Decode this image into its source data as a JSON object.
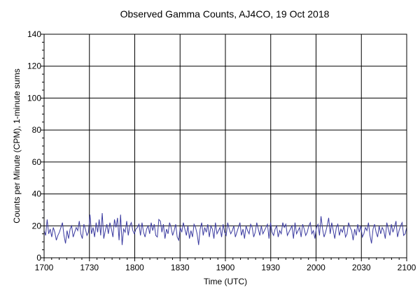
{
  "chart_data": {
    "type": "line",
    "title": "Observed Gamma Counts, AJ4CO, 19 Oct 2018",
    "xlabel": "Time (UTC)",
    "ylabel": "Counts per Minute (CPM), 1-minute sums",
    "x_tick_labels": [
      "1700",
      "1730",
      "1800",
      "1830",
      "1900",
      "1930",
      "2000",
      "2030",
      "2100"
    ],
    "y_tick_labels": [
      "0",
      "20",
      "40",
      "60",
      "80",
      "100",
      "120",
      "140"
    ],
    "xlim_minutes": [
      0,
      240
    ],
    "ylim": [
      0,
      140
    ],
    "grid": true,
    "line_color": "#3b3ba0",
    "series": [
      {
        "values": [
          17,
          14,
          24,
          15,
          18,
          13,
          19,
          16,
          11,
          14,
          16,
          19,
          22,
          14,
          9,
          17,
          12,
          18,
          20,
          13,
          16,
          19,
          17,
          23,
          15,
          12,
          21,
          18,
          14,
          16,
          27,
          15,
          19,
          13,
          22,
          16,
          24,
          14,
          28,
          12,
          17,
          21,
          15,
          22,
          18,
          13,
          24,
          19,
          25,
          11,
          27,
          8,
          18,
          16,
          23,
          14,
          20,
          22,
          17,
          15,
          18,
          19,
          21,
          14,
          22,
          16,
          13,
          18,
          20,
          15,
          22,
          17,
          21,
          14,
          13,
          24,
          23,
          16,
          21,
          12,
          18,
          15,
          22,
          19,
          14,
          17,
          21,
          13,
          11,
          19,
          16,
          22,
          18,
          14,
          20,
          12,
          17,
          13,
          21,
          19,
          15,
          8,
          18,
          22,
          14,
          19,
          16,
          21,
          13,
          20,
          18,
          12,
          22,
          15,
          17,
          19,
          13,
          21,
          16,
          14,
          22,
          18,
          15,
          17,
          20,
          13,
          16,
          19,
          22,
          14,
          18,
          12,
          20,
          17,
          15,
          21,
          19,
          13,
          16,
          22,
          18,
          14,
          20,
          15,
          17,
          19,
          21,
          12,
          22,
          16,
          14,
          18,
          20,
          13,
          17,
          15,
          22,
          19,
          21,
          14,
          16,
          18,
          20,
          12,
          22,
          15,
          17,
          19,
          13,
          21,
          18,
          14,
          16,
          20,
          22,
          15,
          17,
          12,
          19,
          21,
          14,
          26,
          18,
          13,
          16,
          20,
          25,
          15,
          22,
          17,
          12,
          19,
          21,
          14,
          18,
          16,
          20,
          13,
          15,
          22,
          19,
          17,
          11,
          18,
          14,
          21,
          16,
          20,
          13,
          15,
          19,
          17,
          22,
          14,
          9,
          18,
          21,
          16,
          13,
          20,
          15,
          19,
          17,
          12,
          22,
          18,
          14,
          21,
          16,
          19,
          23,
          13,
          17,
          20,
          22,
          14,
          15,
          19
        ]
      }
    ]
  }
}
